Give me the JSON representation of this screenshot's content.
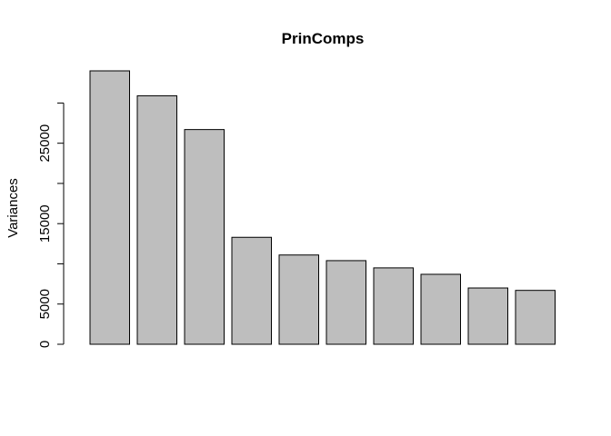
{
  "chart_data": {
    "type": "bar",
    "title": "PrinComps",
    "ylabel": "Variances",
    "xlabel": "",
    "values": [
      34000,
      30900,
      26700,
      13300,
      11100,
      10400,
      9500,
      8700,
      7000,
      6700
    ],
    "ylim": [
      0,
      34000
    ],
    "yticks": [
      0,
      5000,
      15000,
      25000
    ],
    "ytick_labels": [
      "0",
      "5000",
      "15000",
      "25000"
    ],
    "bar_color": "#bebebe",
    "grid": false
  }
}
